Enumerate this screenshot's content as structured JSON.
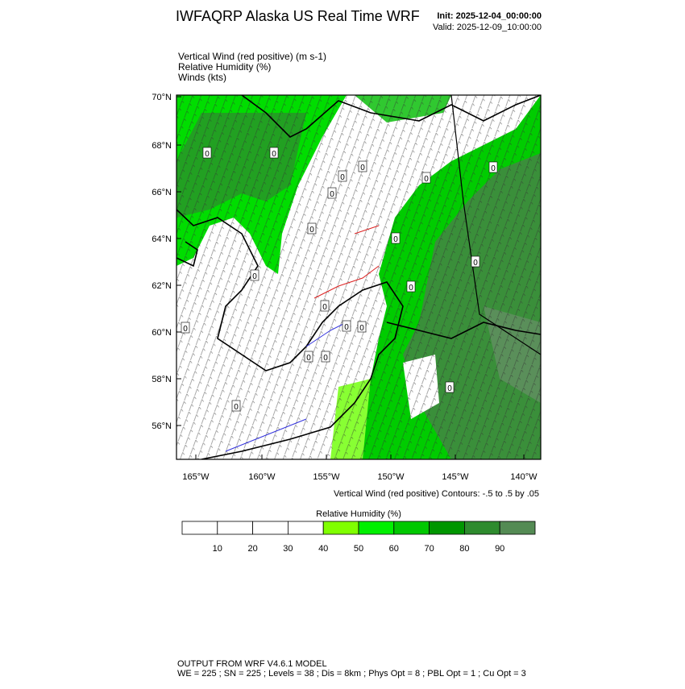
{
  "header": {
    "title": "IWFAQRP Alaska US Real Time WRF",
    "init": "Init: 2025-12-04_00:00:00",
    "valid": "Valid: 2025-12-09_10:00:00"
  },
  "fields": [
    "Vertical Wind (red positive)   (m s-1)",
    "Relative Humidity   (%)",
    "Winds   (kts)"
  ],
  "map": {
    "lat_labels": [
      "70°N",
      "68°N",
      "66°N",
      "64°N",
      "62°N",
      "60°N",
      "58°N",
      "56°N"
    ],
    "lon_labels": [
      "165°W",
      "160°W",
      "155°W",
      "150°W",
      "145°W",
      "140°W"
    ],
    "contour_labels": [
      "0",
      "0",
      "0",
      "0",
      "0",
      "0",
      "0",
      "0",
      "0",
      "0",
      "0",
      "0",
      "0",
      "0",
      "0",
      "0",
      "0",
      "0",
      "0",
      "0"
    ],
    "contour_note": "Vertical Wind (red positive) Contours: -.5 to .5 by .05"
  },
  "colorbar": {
    "title": "Relative Humidity  (%)",
    "labels": [
      10,
      20,
      30,
      40,
      50,
      60,
      70,
      80,
      90
    ],
    "colors": [
      "#ffffff",
      "#ffffff",
      "#ffffff",
      "#ffffff",
      "#80ff00",
      "#00f000",
      "#00c800",
      "#009600",
      "#2e8b2e",
      "#548b54"
    ]
  },
  "footer": {
    "line1": "OUTPUT FROM WRF V4.6.1 MODEL",
    "line2": "WE = 225 ; SN = 225 ; Levels = 38 ; Dis = 8km ; Phys Opt = 8 ; PBL Opt = 1 ; Cu Opt = 3"
  }
}
